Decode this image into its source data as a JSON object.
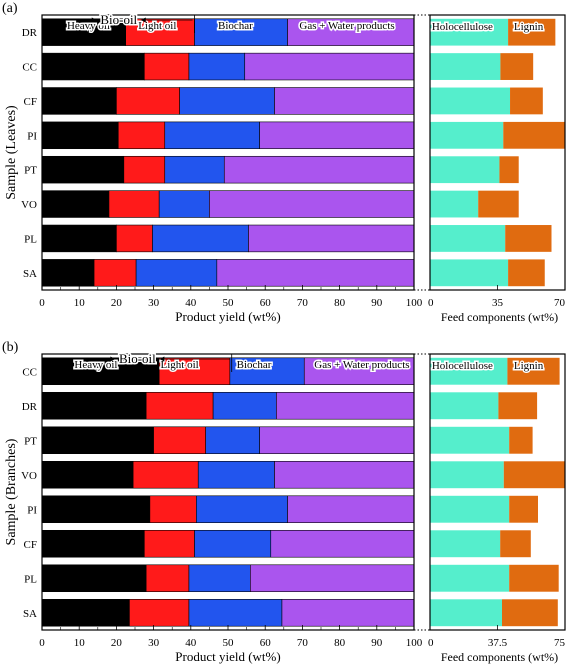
{
  "chart_data": [
    {
      "type": "bar",
      "orientation": "horizontal",
      "stacked": true,
      "panel_label": "(a)",
      "xlabel": "Product yield (wt%)",
      "ylabel": "Sample (Leaves)",
      "xlim": [
        0,
        100
      ],
      "xticks": [
        0,
        10,
        20,
        30,
        40,
        50,
        60,
        70,
        80,
        90,
        100
      ],
      "categories": [
        "DR",
        "CC",
        "CF",
        "PI",
        "PT",
        "VO",
        "PL",
        "SA"
      ],
      "annotation": "Bio-oil",
      "series": [
        {
          "name": "Heavy oil",
          "color": "#000000",
          "values": [
            22.5,
            27.5,
            20.0,
            20.5,
            22.0,
            18.0,
            20.0,
            14.0
          ]
        },
        {
          "name": "Light oil",
          "color": "#ff1a1a",
          "values": [
            18.5,
            12.0,
            17.0,
            12.5,
            11.0,
            13.5,
            9.7,
            11.3
          ]
        },
        {
          "name": "Biochar",
          "color": "#2255ee",
          "values": [
            25.0,
            15.0,
            25.5,
            25.5,
            16.0,
            13.5,
            25.8,
            21.7
          ]
        },
        {
          "name": "Gas + Water products",
          "color": "#aa55ee",
          "values": [
            34.0,
            45.5,
            37.5,
            41.5,
            51.0,
            55.0,
            44.5,
            53.0
          ]
        }
      ]
    },
    {
      "type": "bar",
      "orientation": "horizontal",
      "stacked": true,
      "xlabel": "Feed components (wt%)",
      "xlim": [
        0,
        70
      ],
      "xticks": [
        0,
        35,
        70
      ],
      "categories": [
        "DR",
        "CC",
        "CF",
        "PI",
        "PT",
        "VO",
        "PL",
        "SA"
      ],
      "series": [
        {
          "name": "Holocellulose",
          "color": "#55eecc",
          "values": [
            40.5,
            36.5,
            41.5,
            38.0,
            36.0,
            25.0,
            39.0,
            40.5
          ]
        },
        {
          "name": "Lignin",
          "color": "#e06b10",
          "values": [
            24.5,
            17.0,
            17.0,
            32.0,
            10.0,
            21.0,
            24.0,
            19.0
          ]
        }
      ]
    },
    {
      "type": "bar",
      "orientation": "horizontal",
      "stacked": true,
      "panel_label": "(b)",
      "xlabel": "Product yield (wt%)",
      "ylabel": "Sample (Branches)",
      "xlim": [
        0,
        100
      ],
      "xticks": [
        0,
        10,
        20,
        30,
        40,
        50,
        60,
        70,
        80,
        90,
        100
      ],
      "categories": [
        "CC",
        "DR",
        "PT",
        "VO",
        "PI",
        "CF",
        "PL",
        "SA"
      ],
      "annotation": "Bio-oil",
      "series": [
        {
          "name": "Heavy oil",
          "color": "#000000",
          "values": [
            31.5,
            28.0,
            30.0,
            24.5,
            29.0,
            27.5,
            28.0,
            23.5
          ]
        },
        {
          "name": "Light oil",
          "color": "#ff1a1a",
          "values": [
            19.0,
            18.0,
            14.0,
            17.5,
            12.5,
            13.5,
            11.5,
            16.0
          ]
        },
        {
          "name": "Biochar",
          "color": "#2255ee",
          "values": [
            20.0,
            17.0,
            14.5,
            20.5,
            24.5,
            20.5,
            16.5,
            25.0
          ]
        },
        {
          "name": "Gas + Water products",
          "color": "#aa55ee",
          "values": [
            29.5,
            37.0,
            41.5,
            37.5,
            34.0,
            38.5,
            44.0,
            35.5
          ]
        }
      ]
    },
    {
      "type": "bar",
      "orientation": "horizontal",
      "stacked": true,
      "xlabel": "Feed components (wt%)",
      "xlim": [
        0,
        75
      ],
      "xticks": [
        0,
        37.5,
        75
      ],
      "categories": [
        "CC",
        "DR",
        "PT",
        "VO",
        "PI",
        "CF",
        "PL",
        "SA"
      ],
      "series": [
        {
          "name": "Holocellulose",
          "color": "#55eecc",
          "values": [
            43.0,
            38.0,
            44.0,
            41.0,
            44.0,
            39.0,
            44.0,
            40.0
          ]
        },
        {
          "name": "Lignin",
          "color": "#e06b10",
          "values": [
            29.0,
            21.5,
            13.0,
            34.0,
            16.0,
            17.0,
            27.5,
            31.0
          ]
        }
      ]
    }
  ]
}
